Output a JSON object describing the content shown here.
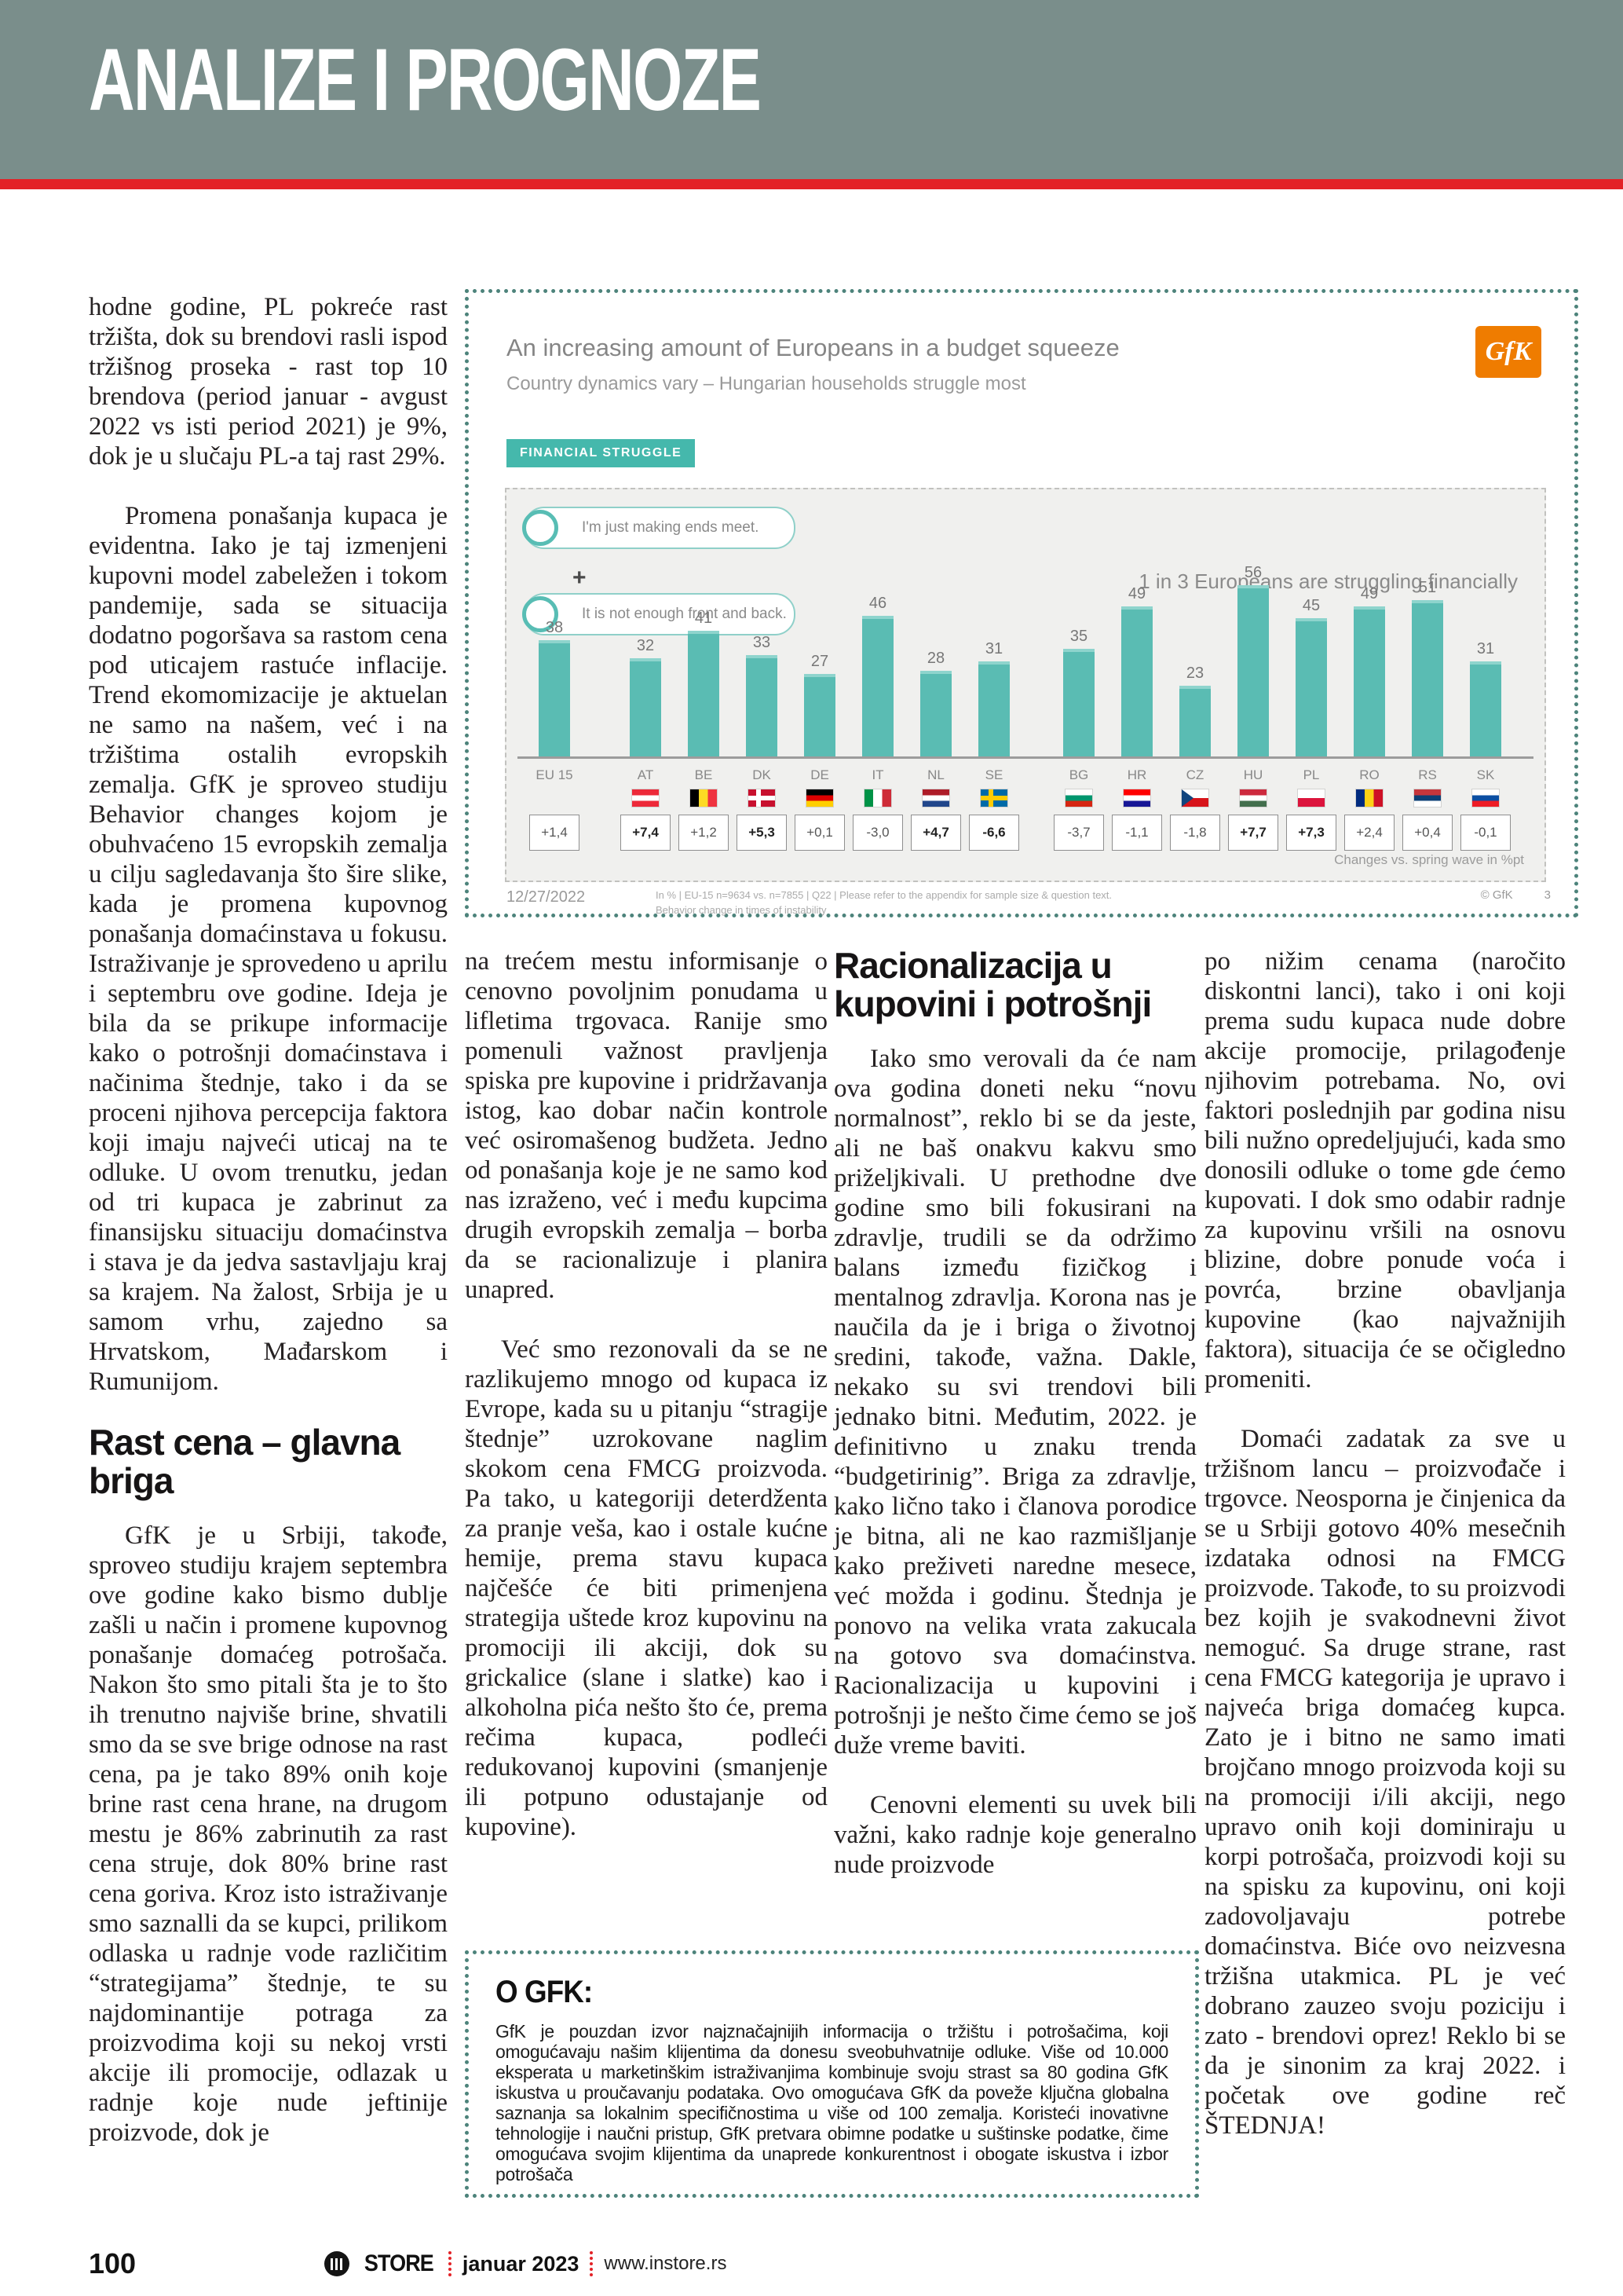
{
  "page": {
    "header": {
      "title": "ANALIZE I PROGNOZE"
    },
    "footer": {
      "page_number": "100",
      "brand": "STORE",
      "issue": "januar 2023",
      "website": "www.instore.rs"
    }
  },
  "colors": {
    "header_teal": "#7a8e8b",
    "accent_red": "#e32227",
    "bar_teal": "#5ABCB3",
    "dotted_border_teal": "#4d837b",
    "gfk_orange": "#ef7c00"
  },
  "article": {
    "column1": {
      "p1": "hodne godine, PL pokreće rast tržišta, dok su brendovi rasli ispod tržišnog proseka - rast top 10 brendova (period januar - avgust 2022 vs isti period 2021) je 9%, dok je u slučaju PL-a taj rast 29%.",
      "p2": "Promena ponašanja kupaca je evidentna. Iako je taj izmenjeni kupovni model zabeležen i tokom pandemije, sada se situacija dodatno pogoršava sa rastom cena pod uticajem rastuće inflacije. Trend ekomomizacije je aktuelan ne samo na našem, već i na tržištima ostalih evropskih zemalja. GfK je sproveo studiju Behavior changes kojom je obuhvaćeno 15 evropskih zemalja u cilju sagledavanja što šire slike, kada je promena kupovnog ponašanja domaćinstava u fokusu. Istraživanje je sprovedeno u aprilu i septembru ove godine. Ideja je bila da se prikupe informacije kako o potrošnji domaćinstava i načinima štednje, tako i da se proceni njihova percepcija faktora koji imaju najveći uticaj na te odluke. U ovom trenutku, jedan od tri kupaca je zabrinut za finansijsku situaciju domaćinstva i stava je da jedva sastavljaju kraj sa krajem. Na žalost, Srbija je u samom vrhu, zajedno sa Hrvatskom, Mađarskom i Rumunijom.",
      "subhead": "Rast cena – glavna briga",
      "p3": "GfK je u Srbiji, takođe, sproveo studiju krajem septembra ove godine kako bismo dublje zašli u način i promene kupovnog ponašanje domaćeg potrošača. Nakon što smo pitali šta je to što ih trenutno najviše brine, shvatili smo da se sve brige odnose na rast cena, pa je tako 89% onih koje brine rast cena hrane, na drugom mestu je 86% zabrinutih za rast cena struje, dok 80% brine rast cena goriva. Kroz isto istraživanje smo saznalli da se kupci, prilikom odlaska u radnje vode različitim “strategijama” štednje, te su najdominantije potraga za proizvodima koji su nekoj vrsti akcije ili promocije, odlazak u radnje koje nude jeftinije proizvode, dok je"
    },
    "column2": {
      "p1": "na trećem mestu informisanje o cenovno povoljnim ponudama u lifletima trgovaca. Ranije smo pomenuli važnost pravljenja spiska pre kupovine i pridržavanja istog, kao dobar način kontrole već osiromašenog budžeta. Jedno od ponašanja koje je ne samo kod nas izraženo, već i među kupcima drugih evropskih zemalja – borba da se racionalizuje i planira unapred.",
      "p2": "Već smo rezonovali da se ne razlikujemo mnogo od kupaca iz Evrope, kada su u pitanju “stragije štednje” uzrokovane naglim skokom cena FMCG proizvoda. Pa tako, u kategoriji deterdženta za pranje veša, kao i ostale kućne hemije, prema stavu kupaca najčešće će biti primenjena strategija uštede kroz kupovinu na promociji ili akciji, dok su grickalice (slane i slatke) kao i alkoholna pića nešto što će, prema rečima kupaca, podleći redukovanoj kupovini (smanjenje ili potpuno odustajanje od kupovine)."
    },
    "column3": {
      "heading": "Racionalizacija u kupovini i potrošnji",
      "p1": "Iako smo verovali da će nam ova godina doneti neku “novu normalnost”, reklo bi se da jeste, ali ne baš onakvu kakvu smo priželjkivali. U prethodne dve godine smo bili fokusirani na zdravlje, trudili se da održimo balans između fizičkog i mentalnog zdravlja. Korona nas je naučila da je i briga o životnoj sredini, takođe, važna. Dakle, nekako su svi trendovi bili jednako bitni. Međutim, 2022. je definitivno u znaku trenda “budgetirinig”. Briga za zdravlje, kako lično tako i članova porodice je bitna, ali ne kao razmišljanje kako preživeti naredne mesece, već možda i godinu. Štednja je ponovo na velika vrata zakucala na gotovo sva domaćinstva. Racionalizacija u kupovini i potrošnji je nešto čime ćemo se još duže vreme baviti.",
      "p2": "Cenovni elementi su uvek bili važni, kako radnje koje generalno nude proizvode"
    },
    "column4": {
      "p1": "po nižim cenama (naročito diskontni lanci), tako i oni koji prema sudu kupaca nude dobre akcije promocije, prilagođenje njihovim potrebama. No, ovi faktori poslednjih par godina nisu bili nužno opredeljujući, kada smo donosili odluke o tome gde ćemo kupovati. I dok smo odabir radnje za kupovinu vršili na osnovu blizine, dobre ponude voća i povrća, brzine obavljanja kupovine (kao najvažnijih faktora), situacija će se očigledno promeniti.",
      "p2": "Domaći zadatak za sve u tržišnom lancu – proizvođače i trgovce. Neosporna je činjenica da se u Srbiji gotovo 40% mesečnih izdataka odnosi na FMCG proizvode. Takođe, to su proizvodi bez kojih je svakodnevni život nemoguć. Sa druge strane, rast cena FMCG kategorija je upravo i najveća briga domaćeg kupca. Zato je i bitno ne samo imati brojčano mnogo proizvoda koji su na promociji i/ili akciji, nego upravo onih koji dominiraju u korpi potrošača, proizvodi koji su na spisku za kupovinu, oni koji zadovoljavaju potrebe domaćinstva. Biće ovo neizvesna tržišna utakmica. PL je već dobrano zauzeo svoju poziciju i zato - brendovi oprez! Reklo bi se da je sinonim za kraj 2022. i početak ove godine reč ŠTEDNJA!"
    }
  },
  "about_box": {
    "heading": "O GFK:",
    "body": "GfK je pouzdan izvor najznačajnijih informacija o tržištu i potrošačima, koji omogućavaju našim klijentima da donesu sveobuhvatnije odluke. Više od 10.000 eksperata u marketinškim istraživanjima kombinuje svoju strast sa 80 godina GfK iskustva u proučavanju podataka. Ovo omogućava GfK da poveže ključna globalna saznanja sa lokalnim specifičnostima u više od 100 zemalja. Koristeći inovativne tehnologije i naučni pristup, GfK pretvara obimne podatke u suštinske podatke, čime omogućava svojim klijentima da unaprede konkurentnost i obogate iskustva i izbor potrošača"
  },
  "chart_data": {
    "type": "bar",
    "title": "An increasing amount of Europeans in a budget squeeze",
    "subtitle": "Country dynamics vary – Hungarian households struggle most",
    "badge": "FINANCIAL STRUGGLE",
    "logo_text": "GfK",
    "legend": [
      "I'm just making ends meet.",
      "It is not enough front and back."
    ],
    "legend_join": "+",
    "annotation": "1 in 3 Europeans are struggling financially",
    "categories": [
      "EU 15",
      "AT",
      "BE",
      "DK",
      "DE",
      "IT",
      "NL",
      "SE",
      "BG",
      "HR",
      "CZ",
      "HU",
      "PL",
      "RO",
      "RS",
      "SK"
    ],
    "values": [
      38,
      32,
      41,
      33,
      27,
      46,
      28,
      31,
      35,
      49,
      23,
      56,
      45,
      49,
      51,
      31
    ],
    "changes": [
      "+1,4",
      "+7,4",
      "+1,2",
      "+5,3",
      "+0,1",
      "-3,0",
      "+4,7",
      "-6,6",
      "-3,7",
      "-1,1",
      "-1,8",
      "+7,7",
      "+7,3",
      "+2,4",
      "+0,4",
      "-0,1"
    ],
    "changes_bold": [
      false,
      true,
      false,
      true,
      false,
      false,
      true,
      true,
      false,
      false,
      false,
      true,
      true,
      false,
      false,
      false
    ],
    "group_gap_after_index": [
      0,
      7
    ],
    "note": "Changes vs. spring wave in %pt",
    "date": "12/27/2022",
    "footnote1": "In % | EU-15 n=9634 vs. n=7855 | Q22 | Please refer to the appendix for sample size & question text.",
    "footnote2": "Behavior change in times of instability",
    "copyright": "© GfK",
    "slide_number": "3",
    "ylim": [
      0,
      60
    ],
    "grid": false,
    "legend_position": "top-left",
    "bar_color": "#5ABCB3"
  }
}
